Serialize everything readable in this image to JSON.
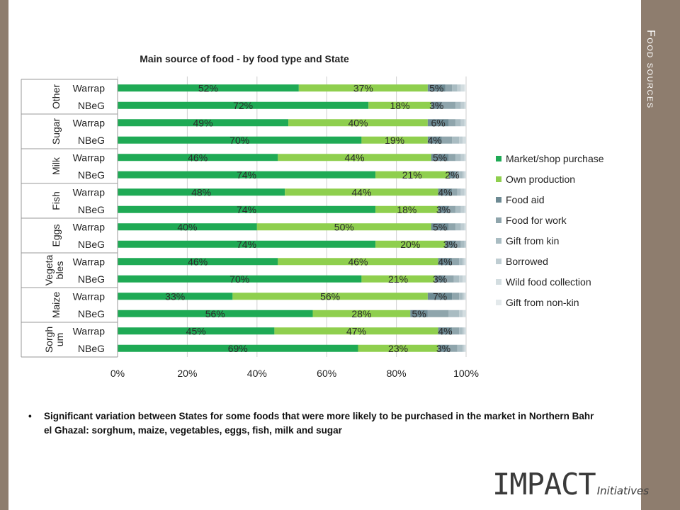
{
  "section_title": "Food sources",
  "colors": {
    "Market/shop purchase": "#1faa55",
    "Own production": "#8fcf4e",
    "Food aid": "#6d8a93",
    "Food for work": "#8fa5ac",
    "Gift from kin": "#a9bcc2",
    "Borrowed": "#bfcdd2",
    "Wild food collection": "#d3dde0",
    "Gift from non-kin": "#e3e9eb"
  },
  "chart_data": {
    "type": "bar",
    "orientation": "horizontal",
    "stacked": true,
    "title": "Main source of food - by food type and State",
    "groups": [
      "Other",
      "Sugar",
      "Milk",
      "Fish",
      "Eggs",
      "Vegeta bles",
      "Maize",
      "Sorgh um"
    ],
    "categories": [
      "Warrap",
      "NBeG"
    ],
    "x_ticks": [
      "0%",
      "20%",
      "40%",
      "60%",
      "80%",
      "100%"
    ],
    "xlim": [
      0,
      100
    ],
    "grid": true,
    "legend_position": "right",
    "legend": [
      "Market/shop purchase",
      "Own production",
      "Food aid",
      "Food for work",
      "Gift from kin",
      "Borrowed",
      "Wild food collection",
      "Gift from non-kin"
    ],
    "rows": [
      {
        "group": "Other",
        "state": "Warrap",
        "values": [
          52,
          37,
          5,
          2,
          1.5,
          1,
          1,
          0.5
        ],
        "labels": [
          "52%",
          "37%",
          "5%"
        ]
      },
      {
        "group": "Other",
        "state": "NBeG",
        "values": [
          72,
          18,
          3,
          4,
          1.5,
          1,
          0.5,
          0
        ],
        "labels": [
          "72%",
          "18%",
          "3%"
        ]
      },
      {
        "group": "Sugar",
        "state": "Warrap",
        "values": [
          49,
          40,
          6,
          2,
          1.5,
          1,
          0.5,
          0
        ],
        "labels": [
          "49%",
          "40%",
          "6%"
        ]
      },
      {
        "group": "Sugar",
        "state": "NBeG",
        "values": [
          70,
          19,
          4,
          3,
          2,
          1,
          1,
          0
        ],
        "labels": [
          "70%",
          "19%",
          "4%"
        ]
      },
      {
        "group": "Milk",
        "state": "Warrap",
        "values": [
          46,
          44,
          5,
          2,
          1.5,
          1,
          0.5,
          0
        ],
        "labels": [
          "46%",
          "44%",
          "5%"
        ]
      },
      {
        "group": "Milk",
        "state": "NBeG",
        "values": [
          74,
          21,
          2,
          1,
          1,
          0.5,
          0.5,
          0
        ],
        "labels": [
          "74%",
          "21%",
          "2%"
        ]
      },
      {
        "group": "Fish",
        "state": "Warrap",
        "values": [
          48,
          44,
          4,
          1.5,
          1,
          1,
          0.5,
          0
        ],
        "labels": [
          "48%",
          "44%",
          "4%"
        ]
      },
      {
        "group": "Fish",
        "state": "NBeG",
        "values": [
          74,
          18,
          3,
          2,
          1.5,
          1,
          0.5,
          0
        ],
        "labels": [
          "74%",
          "18%",
          "3%"
        ]
      },
      {
        "group": "Eggs",
        "state": "Warrap",
        "values": [
          40,
          50,
          5,
          2,
          1.5,
          1,
          0.5,
          0
        ],
        "labels": [
          "40%",
          "50%",
          "5%"
        ]
      },
      {
        "group": "Eggs",
        "state": "NBeG",
        "values": [
          74,
          20,
          3,
          1.5,
          1,
          0.5,
          0,
          0
        ],
        "labels": [
          "74%",
          "20%",
          "3%"
        ]
      },
      {
        "group": "Vegeta bles",
        "state": "Warrap",
        "values": [
          46,
          46,
          4,
          2,
          1,
          0.5,
          0.5,
          0
        ],
        "labels": [
          "46%",
          "46%",
          "4%"
        ]
      },
      {
        "group": "Vegeta bles",
        "state": "NBeG",
        "values": [
          70,
          21,
          3,
          2.5,
          1.5,
          1,
          1,
          0
        ],
        "labels": [
          "70%",
          "21%",
          "3%"
        ]
      },
      {
        "group": "Maize",
        "state": "Warrap",
        "values": [
          33,
          56,
          7,
          2,
          1,
          0.5,
          0.5,
          0
        ],
        "labels": [
          "33%",
          "56%",
          "7%"
        ]
      },
      {
        "group": "Maize",
        "state": "NBeG",
        "values": [
          56,
          28,
          5,
          6,
          3,
          1,
          1,
          0
        ],
        "labels": [
          "56%",
          "28%",
          "5%"
        ]
      },
      {
        "group": "Sorgh um",
        "state": "Warrap",
        "values": [
          45,
          47,
          4,
          2,
          1,
          0.5,
          0.5,
          0
        ],
        "labels": [
          "45%",
          "47%",
          "4%"
        ]
      },
      {
        "group": "Sorgh um",
        "state": "NBeG",
        "values": [
          69,
          23,
          3,
          2.5,
          1.5,
          0.5,
          0.5,
          0
        ],
        "labels": [
          "69%",
          "23%",
          "3%"
        ]
      }
    ]
  },
  "note": "Significant variation between States for some foods that were more likely to be purchased in the market in Northern Bahr el Ghazal: sorghum, maize, vegetables, eggs, fish, milk and sugar",
  "note_bullet": "•",
  "logo": {
    "main": "IMPACT",
    "sub": "Initiatives"
  }
}
